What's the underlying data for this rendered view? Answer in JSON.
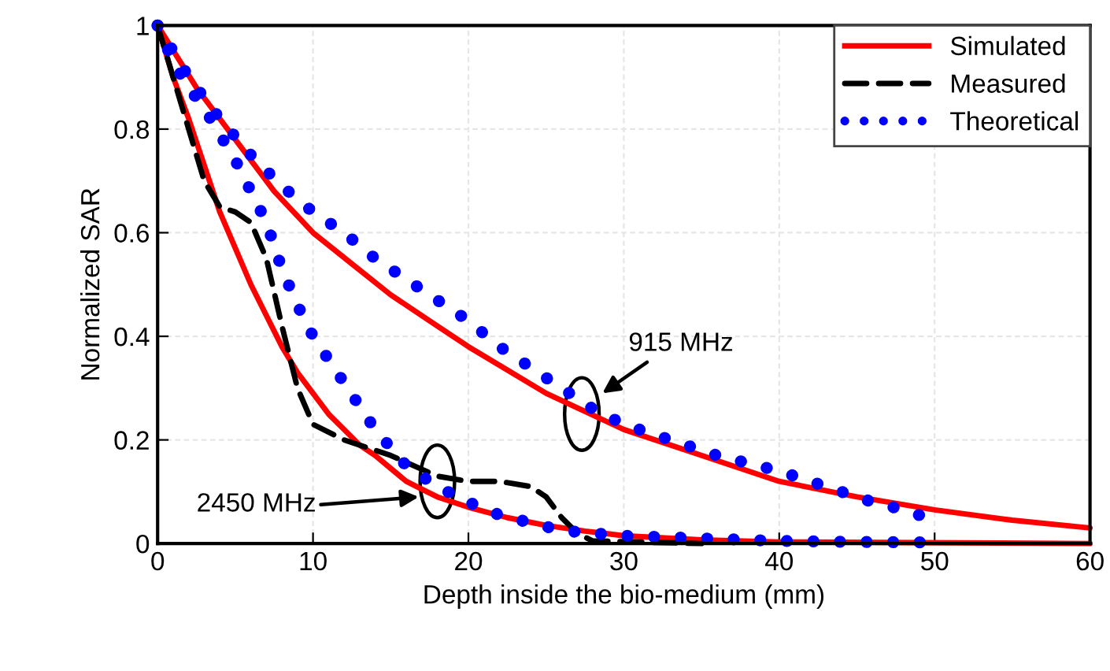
{
  "chart_data": {
    "type": "line",
    "xlabel": "Depth inside the bio-medium (mm)",
    "ylabel": "Normalized SAR",
    "xlim": [
      0,
      60
    ],
    "ylim": [
      0,
      1
    ],
    "xticks": [
      0,
      10,
      20,
      30,
      40,
      50,
      60
    ],
    "yticks": [
      0,
      0.2,
      0.4,
      0.6,
      0.8,
      1
    ],
    "grid": true,
    "legend": "top right",
    "marker": "none",
    "series": [
      {
        "name": "Simulated",
        "color": "#ff0000",
        "line_style": "solid",
        "x": [
          0,
          2.5,
          5,
          7.5,
          10,
          12.5,
          15,
          17.5,
          20,
          22.5,
          25,
          27.5,
          30,
          35,
          40,
          45,
          50,
          55,
          60
        ],
        "values": [
          1,
          0.88,
          0.78,
          0.68,
          0.6,
          0.54,
          0.48,
          0.43,
          0.38,
          0.335,
          0.29,
          0.255,
          0.22,
          0.17,
          0.12,
          0.09,
          0.065,
          0.045,
          0.03
        ]
      },
      {
        "color": "#ff0000",
        "line_style": "solid",
        "x": [
          0,
          1,
          2,
          3,
          4,
          5,
          6,
          7,
          8,
          9,
          10,
          11,
          12,
          13,
          14,
          15,
          16,
          17,
          18,
          19,
          20,
          22.5,
          25,
          27.5,
          30,
          35,
          40,
          60
        ],
        "values": [
          1,
          0.9,
          0.82,
          0.73,
          0.64,
          0.57,
          0.5,
          0.44,
          0.38,
          0.33,
          0.29,
          0.25,
          0.22,
          0.19,
          0.17,
          0.145,
          0.12,
          0.105,
          0.09,
          0.08,
          0.07,
          0.05,
          0.035,
          0.024,
          0.015,
          0.007,
          0.003,
          0
        ]
      },
      {
        "name": "Measured",
        "color": "#000000",
        "line_style": "dashed",
        "x": [
          0,
          1,
          2,
          3,
          4,
          5,
          6,
          7,
          8,
          9,
          10,
          12,
          15,
          18,
          20,
          22,
          24,
          25,
          26,
          27,
          28,
          35
        ],
        "values": [
          1,
          0.9,
          0.8,
          0.7,
          0.65,
          0.64,
          0.62,
          0.55,
          0.42,
          0.3,
          0.23,
          0.2,
          0.17,
          0.13,
          0.12,
          0.12,
          0.11,
          0.09,
          0.05,
          0.02,
          0.005,
          0
        ]
      },
      {
        "name": "Theoretical",
        "color": "#0000ff",
        "line_style": "dotted",
        "x": [
          0,
          2,
          4,
          6,
          8,
          10,
          12,
          14,
          16,
          18,
          20,
          22,
          24,
          26,
          28,
          30,
          32,
          34,
          36,
          38,
          40,
          42,
          44,
          46,
          48,
          49
        ],
        "values": [
          1,
          0.9,
          0.82,
          0.75,
          0.69,
          0.64,
          0.6,
          0.55,
          0.51,
          0.47,
          0.43,
          0.38,
          0.34,
          0.3,
          0.26,
          0.23,
          0.21,
          0.19,
          0.17,
          0.155,
          0.14,
          0.12,
          0.1,
          0.08,
          0.065,
          0.055
        ]
      },
      {
        "color": "#0000ff",
        "line_style": "dotted",
        "x": [
          0,
          1,
          2,
          3,
          4,
          5,
          6,
          7,
          8,
          9,
          10,
          12,
          14,
          16,
          18,
          20,
          22,
          24,
          26,
          28,
          30,
          35,
          40,
          45,
          50
        ],
        "values": [
          1,
          0.93,
          0.88,
          0.84,
          0.79,
          0.74,
          0.68,
          0.62,
          0.53,
          0.46,
          0.4,
          0.31,
          0.22,
          0.15,
          0.11,
          0.08,
          0.055,
          0.04,
          0.025,
          0.02,
          0.015,
          0.01,
          0.005,
          0.003,
          0.002
        ]
      }
    ],
    "annotations": [
      "915 MHz",
      "2450 MHz"
    ]
  }
}
